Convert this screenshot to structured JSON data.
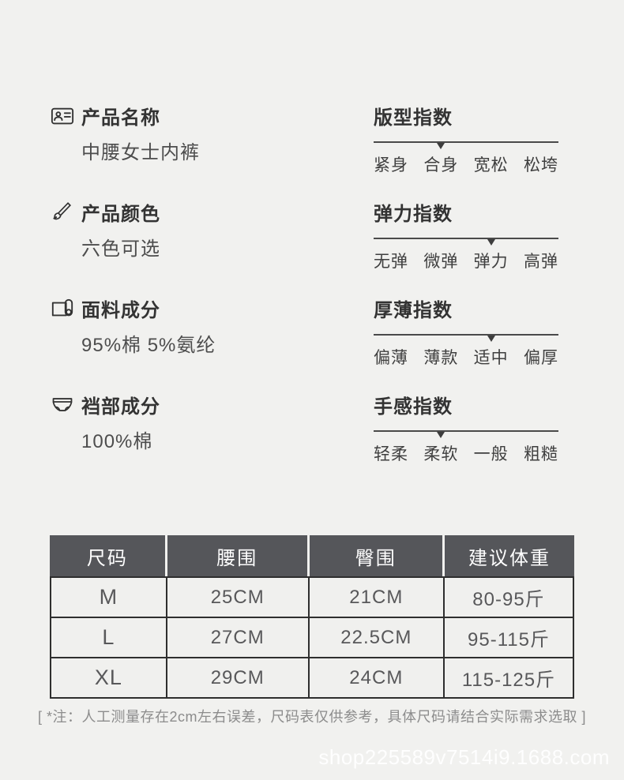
{
  "page": {
    "background": "#f1f1ef"
  },
  "attributes": [
    {
      "icon": "id-card-icon",
      "title": "产品名称",
      "value": "中腰女士内裤"
    },
    {
      "icon": "brush-icon",
      "title": "产品颜色",
      "value": "六色可选"
    },
    {
      "icon": "fabric-roll-icon",
      "title": "面料成分",
      "value": "95%棉 5%氨纶"
    },
    {
      "icon": "briefs-icon",
      "title": "裆部成分",
      "value": "100%棉"
    }
  ],
  "indexes": [
    {
      "title": "版型指数",
      "options": [
        "紧身",
        "合身",
        "宽松",
        "松垮"
      ],
      "selected_index": 1
    },
    {
      "title": "弹力指数",
      "options": [
        "无弹",
        "微弹",
        "弹力",
        "高弹"
      ],
      "selected_index": 2
    },
    {
      "title": "厚薄指数",
      "options": [
        "偏薄",
        "薄款",
        "适中",
        "偏厚"
      ],
      "selected_index": 2
    },
    {
      "title": "手感指数",
      "options": [
        "轻柔",
        "柔软",
        "一般",
        "粗糙"
      ],
      "selected_index": 1
    }
  ],
  "size_table": {
    "header_bg": "#55565a",
    "header_text_color": "#ffffff",
    "headers": [
      "尺码",
      "腰围",
      "臀围",
      "建议体重"
    ],
    "rows": [
      [
        "M",
        "25CM",
        "21CM",
        "80-95斤"
      ],
      [
        "L",
        "27CM",
        "22.5CM",
        "95-115斤"
      ],
      [
        "XL",
        "29CM",
        "24CM",
        "115-125斤"
      ]
    ]
  },
  "note": "[ *注：人工测量存在2cm左右误差，尺码表仅供参考，具体尺码请结合实际需求选取 ]",
  "watermark": "shop225589v7514i9.1688.com"
}
